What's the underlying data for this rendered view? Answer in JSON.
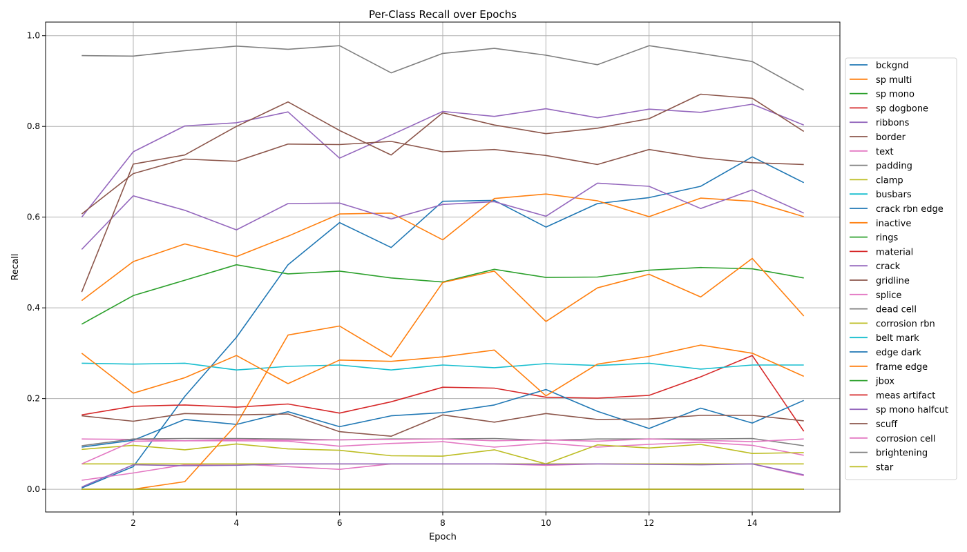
{
  "chart_data": {
    "type": "line",
    "title": "Per-Class Recall over Epochs",
    "xlabel": "Epoch",
    "ylabel": "Recall",
    "xlim": [
      0.3,
      15.7
    ],
    "ylim": [
      -0.05,
      1.03
    ],
    "xticks": [
      2,
      4,
      6,
      8,
      10,
      12,
      14
    ],
    "yticks": [
      0.0,
      0.2,
      0.4,
      0.6,
      0.8,
      1.0
    ],
    "ytick_labels": [
      "0.0",
      "0.2",
      "0.4",
      "0.6",
      "0.8",
      "1.0"
    ],
    "grid": true,
    "legend_position": "right-outside",
    "x": [
      1,
      2,
      3,
      4,
      5,
      6,
      7,
      8,
      9,
      10,
      11,
      12,
      13,
      14,
      15
    ],
    "series": [
      {
        "name": "bckgnd",
        "color": "#1f77b4",
        "values": [
          0.003,
          0.05,
          0.205,
          0.335,
          0.495,
          0.588,
          0.533,
          0.635,
          0.637,
          0.578,
          0.63,
          0.643,
          0.668,
          0.733,
          0.676
        ]
      },
      {
        "name": "sp multi",
        "color": "#ff7f0e",
        "values": [
          0.416,
          0.502,
          0.541,
          0.513,
          0.558,
          0.607,
          0.609,
          0.55,
          0.641,
          0.651,
          0.636,
          0.601,
          0.642,
          0.635,
          0.601
        ]
      },
      {
        "name": "sp mono",
        "color": "#2ca02c",
        "values": [
          0.364,
          0.427,
          0.461,
          0.495,
          0.475,
          0.481,
          0.466,
          0.457,
          0.485,
          0.467,
          0.468,
          0.483,
          0.489,
          0.486,
          0.466
        ]
      },
      {
        "name": "sp dogbone",
        "color": "#d62728",
        "values": [
          0.164,
          0.183,
          0.186,
          0.181,
          0.188,
          0.168,
          0.193,
          0.225,
          0.223,
          0.203,
          0.201,
          0.207,
          0.248,
          0.295,
          0.128
        ]
      },
      {
        "name": "ribbons",
        "color": "#9467bd",
        "values": [
          0.6,
          0.744,
          0.801,
          0.808,
          0.832,
          0.73,
          0.781,
          0.833,
          0.822,
          0.839,
          0.819,
          0.838,
          0.831,
          0.849,
          0.803
        ]
      },
      {
        "name": "border",
        "color": "#8c564b",
        "values": [
          0.607,
          0.696,
          0.728,
          0.723,
          0.761,
          0.76,
          0.767,
          0.744,
          0.749,
          0.736,
          0.716,
          0.749,
          0.731,
          0.72,
          0.716
        ]
      },
      {
        "name": "text",
        "color": "#e377c2",
        "values": [
          0.111,
          0.11,
          0.107,
          0.107,
          0.106,
          0.095,
          0.101,
          0.105,
          0.093,
          0.102,
          0.093,
          0.099,
          0.104,
          0.097,
          0.075
        ]
      },
      {
        "name": "padding",
        "color": "#7f7f7f",
        "values": [
          0.956,
          0.955,
          0.967,
          0.977,
          0.97,
          0.978,
          0.918,
          0.961,
          0.972,
          0.957,
          0.936,
          0.978,
          0.961,
          0.943,
          0.88
        ]
      },
      {
        "name": "clamp",
        "color": "#bcbd22",
        "values": [
          0.088,
          0.097,
          0.087,
          0.1,
          0.089,
          0.086,
          0.074,
          0.073,
          0.087,
          0.056,
          0.098,
          0.091,
          0.099,
          0.079,
          0.081
        ]
      },
      {
        "name": "busbars",
        "color": "#17becf",
        "values": [
          0.278,
          0.276,
          0.278,
          0.263,
          0.271,
          0.274,
          0.263,
          0.274,
          0.268,
          0.277,
          0.273,
          0.278,
          0.265,
          0.274,
          0.274
        ]
      },
      {
        "name": "crack rbn edge",
        "color": "#1f77b4",
        "values": [
          0.093,
          0.108,
          0.154,
          0.143,
          0.171,
          0.138,
          0.162,
          0.169,
          0.186,
          0.22,
          0.172,
          0.134,
          0.179,
          0.146,
          0.196
        ]
      },
      {
        "name": "inactive",
        "color": "#ff7f0e",
        "values": [
          0.3,
          0.212,
          0.246,
          0.295,
          0.233,
          0.285,
          0.282,
          0.292,
          0.307,
          0.206,
          0.276,
          0.293,
          0.318,
          0.3,
          0.249
        ]
      },
      {
        "name": "rings",
        "color": "#2ca02c",
        "values": [
          0.0,
          0.0,
          0.0,
          0.0,
          0.0,
          0.0,
          0.0,
          0.0,
          0.0,
          0.0,
          0.0,
          0.0,
          0.0,
          0.0,
          0.0
        ]
      },
      {
        "name": "material",
        "color": "#d62728",
        "values": [
          0.0,
          0.0,
          0.0,
          0.0,
          0.0,
          0.0,
          0.0,
          0.0,
          0.0,
          0.0,
          0.0,
          0.0,
          0.0,
          0.0,
          0.0
        ]
      },
      {
        "name": "crack",
        "color": "#9467bd",
        "values": [
          0.529,
          0.647,
          0.615,
          0.572,
          0.63,
          0.631,
          0.596,
          0.628,
          0.634,
          0.602,
          0.675,
          0.668,
          0.619,
          0.66,
          0.609
        ]
      },
      {
        "name": "gridline",
        "color": "#8c564b",
        "values": [
          0.435,
          0.717,
          0.737,
          0.8,
          0.854,
          0.791,
          0.737,
          0.83,
          0.803,
          0.784,
          0.796,
          0.817,
          0.871,
          0.862,
          0.789
        ]
      },
      {
        "name": "splice",
        "color": "#e377c2",
        "values": [
          0.02,
          0.036,
          0.054,
          0.056,
          0.05,
          0.044,
          0.056,
          0.056,
          0.056,
          0.053,
          0.056,
          0.056,
          0.056,
          0.056,
          0.03
        ]
      },
      {
        "name": "dead cell",
        "color": "#7f7f7f",
        "values": [
          0.096,
          0.111,
          0.112,
          0.112,
          0.111,
          0.109,
          0.111,
          0.111,
          0.112,
          0.108,
          0.111,
          0.111,
          0.111,
          0.112,
          0.096
        ]
      },
      {
        "name": "corrosion rbn",
        "color": "#bcbd22",
        "values": [
          0.056,
          0.056,
          0.056,
          0.056,
          0.056,
          0.056,
          0.056,
          0.056,
          0.056,
          0.056,
          0.056,
          0.056,
          0.056,
          0.056,
          0.056
        ]
      },
      {
        "name": "belt mark",
        "color": "#17becf",
        "values": [
          0.0,
          0.0,
          0.0,
          0.0,
          0.0,
          0.0,
          0.0,
          0.0,
          0.0,
          0.0,
          0.0,
          0.0,
          0.0,
          0.0,
          0.0
        ]
      },
      {
        "name": "edge dark",
        "color": "#1f77b4",
        "values": [
          0.0,
          0.0,
          0.0,
          0.0,
          0.0,
          0.0,
          0.0,
          0.0,
          0.0,
          0.0,
          0.0,
          0.0,
          0.0,
          0.0,
          0.0
        ]
      },
      {
        "name": "frame edge",
        "color": "#ff7f0e",
        "values": [
          0.0,
          0.0,
          0.017,
          0.143,
          0.34,
          0.36,
          0.292,
          0.456,
          0.481,
          0.37,
          0.444,
          0.474,
          0.424,
          0.509,
          0.382
        ]
      },
      {
        "name": "jbox",
        "color": "#2ca02c",
        "values": [
          0.0,
          0.0,
          0.0,
          0.0,
          0.0,
          0.0,
          0.0,
          0.0,
          0.0,
          0.0,
          0.0,
          0.0,
          0.0,
          0.0,
          0.0
        ]
      },
      {
        "name": "meas artifact",
        "color": "#d62728",
        "values": [
          0.0,
          0.0,
          0.0,
          0.0,
          0.0,
          0.0,
          0.0,
          0.0,
          0.0,
          0.0,
          0.0,
          0.0,
          0.0,
          0.0,
          0.0
        ]
      },
      {
        "name": "sp mono halfcut",
        "color": "#9467bd",
        "values": [
          0.005,
          0.054,
          0.052,
          0.053,
          0.056,
          0.056,
          0.056,
          0.056,
          0.056,
          0.055,
          0.056,
          0.055,
          0.054,
          0.056,
          0.032
        ]
      },
      {
        "name": "scuff",
        "color": "#8c564b",
        "values": [
          0.162,
          0.15,
          0.167,
          0.164,
          0.166,
          0.127,
          0.117,
          0.164,
          0.148,
          0.167,
          0.154,
          0.155,
          0.163,
          0.163,
          0.151
        ]
      },
      {
        "name": "corrosion cell",
        "color": "#e377c2",
        "values": [
          0.056,
          0.106,
          0.107,
          0.11,
          0.108,
          0.109,
          0.11,
          0.111,
          0.107,
          0.109,
          0.106,
          0.111,
          0.108,
          0.105,
          0.111
        ]
      },
      {
        "name": "brightening",
        "color": "#7f7f7f",
        "values": [
          0.0,
          0.0,
          0.0,
          0.0,
          0.0,
          0.0,
          0.0,
          0.0,
          0.0,
          0.0,
          0.0,
          0.0,
          0.0,
          0.0,
          0.0
        ]
      },
      {
        "name": "star",
        "color": "#bcbd22",
        "values": [
          0.0,
          0.0,
          0.0,
          0.0,
          0.0,
          0.0,
          0.0,
          0.0,
          0.0,
          0.0,
          0.0,
          0.0,
          0.0,
          0.0,
          0.0
        ]
      }
    ]
  }
}
